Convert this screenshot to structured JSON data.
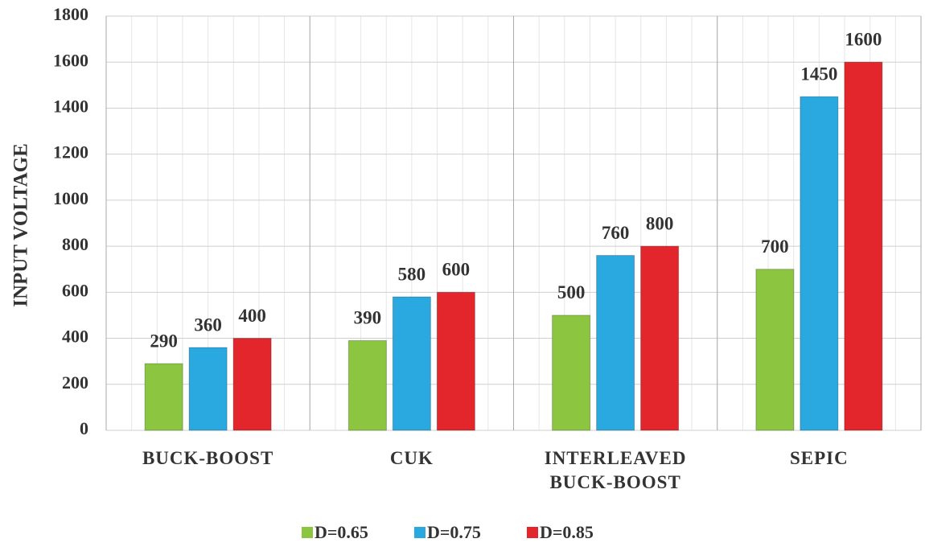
{
  "chart_data": {
    "type": "bar",
    "y_label": "INPUT  VOLTAGE",
    "categories": [
      "BUCK-BOOST",
      "CUK",
      "INTERLEAVED BUCK-BOOST",
      "SEPIC"
    ],
    "series": [
      {
        "name": "D=0.65",
        "color": "#8cc640",
        "values": [
          290,
          390,
          500,
          700
        ]
      },
      {
        "name": "D=0.75",
        "color": "#2aa9e0",
        "values": [
          360,
          580,
          760,
          1450
        ]
      },
      {
        "name": "D=0.85",
        "color": "#e3262b",
        "values": [
          400,
          600,
          800,
          1600
        ]
      }
    ],
    "ylim": [
      0,
      1800
    ],
    "yticks": [
      0,
      200,
      400,
      600,
      800,
      1000,
      1200,
      1400,
      1600,
      1800
    ],
    "grid": true,
    "legend": "bottom"
  }
}
